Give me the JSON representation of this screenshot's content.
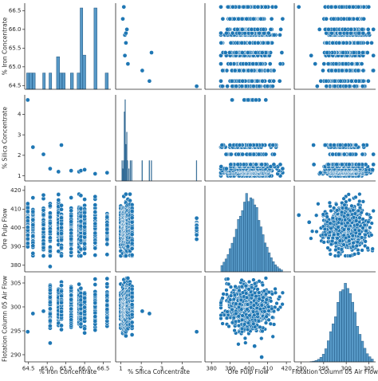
{
  "chart_data": {
    "type": "scatter",
    "subtype": "pairplot",
    "variables": [
      {
        "key": "iron",
        "label": "% Iron Concentrate",
        "range": [
          64.4,
          66.7
        ],
        "ticks": [
          64.5,
          65.0,
          65.5,
          66.0,
          66.5
        ],
        "tick_labels": [
          "64.5",
          "65.0",
          "65.5",
          "66.0",
          "66.5"
        ]
      },
      {
        "key": "silica",
        "label": "% Silica Concentrate",
        "range": [
          0.75,
          4.95
        ],
        "ticks": [
          1,
          2,
          3,
          4
        ],
        "tick_labels": [
          "1",
          "2",
          "3",
          "4"
        ]
      },
      {
        "key": "pulp",
        "label": "Ore Pulp Flow",
        "range": [
          376.5,
          422.5
        ],
        "ticks": [
          380,
          390,
          400,
          410,
          420
        ],
        "tick_labels": [
          "380",
          "390",
          "400",
          "410",
          "420"
        ]
      },
      {
        "key": "air",
        "label": "Flotation Column 05 Air Flow",
        "range": [
          288.5,
          306.5
        ],
        "ticks": [
          290,
          295,
          300,
          305
        ],
        "tick_labels": [
          "290",
          "295",
          "300",
          "305"
        ]
      }
    ],
    "iron_hist": {
      "bins": [
        [
          64.45,
          64.52
        ],
        [
          64.52,
          64.6
        ],
        [
          64.6,
          64.68
        ],
        [
          64.88,
          64.95
        ],
        [
          65.05,
          65.12
        ],
        [
          65.25,
          65.33
        ],
        [
          65.33,
          65.4
        ],
        [
          65.4,
          65.48
        ],
        [
          65.62,
          65.7
        ],
        [
          65.8,
          65.88
        ],
        [
          65.88,
          65.95
        ],
        [
          65.95,
          66.03
        ],
        [
          66.25,
          66.33
        ],
        [
          66.55,
          66.63
        ]
      ],
      "counts": [
        0.2,
        0.2,
        0.2,
        0.2,
        0.2,
        0.4,
        0.2,
        0.2,
        0.2,
        0.2,
        1.0,
        0.42,
        1.0,
        0.2
      ]
    },
    "iron_levels": [
      64.48,
      64.62,
      64.9,
      65.08,
      65.3,
      65.38,
      65.64,
      65.85,
      65.9,
      66.0,
      66.28,
      66.6
    ],
    "silica_iron_pairs": [
      [
        64.48,
        4.7
      ],
      [
        64.62,
        2.4
      ],
      [
        64.9,
        2.05
      ],
      [
        65.08,
        1.35
      ],
      [
        65.3,
        1.2
      ],
      [
        65.38,
        2.5
      ],
      [
        65.64,
        1.25
      ],
      [
        65.85,
        1.2
      ],
      [
        65.9,
        1.25
      ],
      [
        66.0,
        1.3
      ],
      [
        66.28,
        1.1
      ],
      [
        66.6,
        1.15
      ]
    ],
    "silica_levels": [
      1.0,
      1.1,
      1.15,
      1.2,
      1.25,
      1.3,
      1.35,
      1.45,
      1.55,
      2.05,
      2.4,
      2.5,
      4.7
    ],
    "silica_hist": {
      "bins": [
        [
          1.05,
          1.08
        ],
        [
          1.08,
          1.11
        ],
        [
          1.13,
          1.16
        ],
        [
          1.16,
          1.19
        ],
        [
          1.2,
          1.23
        ],
        [
          1.23,
          1.26
        ],
        [
          1.28,
          1.31
        ],
        [
          1.31,
          1.34
        ],
        [
          1.38,
          1.41
        ],
        [
          1.45,
          1.48
        ],
        [
          1.52,
          1.55
        ],
        [
          2.03,
          2.06
        ],
        [
          2.38,
          2.41
        ],
        [
          2.48,
          2.51
        ],
        [
          4.68,
          4.71
        ]
      ],
      "counts": [
        0.25,
        0.15,
        0.25,
        0.85,
        1.0,
        0.45,
        0.6,
        0.25,
        0.15,
        0.25,
        0.25,
        0.25,
        0.25,
        0.25,
        0.25
      ]
    },
    "pulp_distribution": {
      "mean": 400,
      "std": 6.5,
      "min": 385,
      "max": 418
    },
    "air_distribution": {
      "mean": 299.8,
      "std": 2.3,
      "min": 292,
      "max": 306
    },
    "outliers": {
      "iron_vs_air": [
        [
          64.48,
          294.8
        ],
        [
          64.62,
          298.6
        ],
        [
          64.9,
          299.1
        ]
      ],
      "silica_vs_air": [
        [
          4.7,
          294.8
        ],
        [
          2.4,
          298.6
        ],
        [
          2.05,
          299.1
        ]
      ],
      "iron_vs_pulp": [
        [
          65.08,
          379.3
        ]
      ],
      "air_vs_pulp": [
        [
          289.5,
          406.8
        ],
        [
          291.8,
          403
        ]
      ],
      "pulp_vs_air": [
        [
          406.8,
          289.5
        ],
        [
          403,
          291.8
        ]
      ],
      "air_vs_iron": [
        [
          289.5,
          66.6
        ]
      ],
      "silica_vs_iron": [
        [
          4.7,
          64.48
        ]
      ]
    },
    "grid": false,
    "color": "#1f77b4",
    "edge_color": "#ffffff"
  }
}
